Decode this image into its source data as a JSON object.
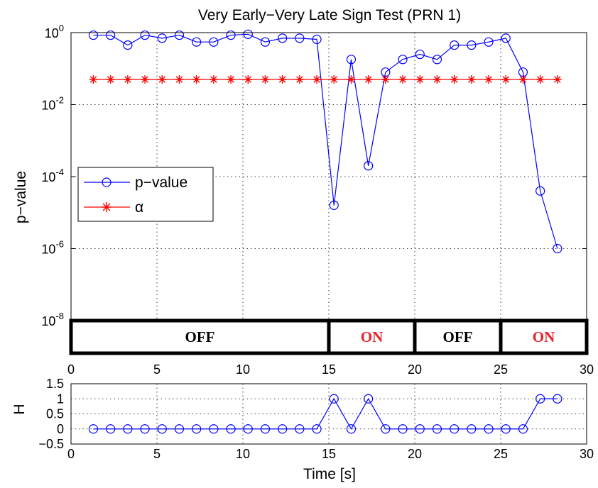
{
  "chart_data": [
    {
      "type": "line",
      "title": "Very Early−Very Late Sign Test (PRN 1)",
      "ylabel": "p−value",
      "xlabel": "",
      "xlim": [
        0,
        30
      ],
      "ylim_exponent": [
        -8,
        0
      ],
      "yscale": "log",
      "grid": true,
      "legend_position": "middle-left",
      "x_ticks": [
        "0",
        "5",
        "10",
        "15",
        "20",
        "25",
        "30"
      ],
      "y_ticks": [
        {
          "base": "10",
          "exp": "0"
        },
        {
          "base": "10",
          "exp": "-2"
        },
        {
          "base": "10",
          "exp": "-4"
        },
        {
          "base": "10",
          "exp": "-6"
        },
        {
          "base": "10",
          "exp": "-8"
        }
      ],
      "series": [
        {
          "name": "p−value",
          "color": "#0000ff",
          "marker": "circle",
          "x": [
            1.3,
            2.3,
            3.3,
            4.3,
            5.3,
            6.3,
            7.3,
            8.3,
            9.3,
            10.3,
            11.3,
            12.3,
            13.3,
            14.3,
            15.3,
            16.3,
            17.3,
            18.3,
            19.3,
            20.3,
            21.3,
            22.3,
            23.3,
            24.3,
            25.3,
            26.3,
            27.3,
            28.3
          ],
          "y": [
            0.85,
            0.85,
            0.45,
            0.85,
            0.7,
            0.85,
            0.55,
            0.55,
            0.85,
            0.9,
            0.55,
            0.7,
            0.7,
            0.65,
            1.6e-05,
            0.18,
            0.0002,
            0.08,
            0.18,
            0.25,
            0.18,
            0.45,
            0.45,
            0.55,
            0.7,
            0.08,
            4e-05,
            1e-06
          ]
        },
        {
          "name": "α",
          "color": "#ff0000",
          "marker": "asterisk",
          "x": [
            1.3,
            2.3,
            3.3,
            4.3,
            5.3,
            6.3,
            7.3,
            8.3,
            9.3,
            10.3,
            11.3,
            12.3,
            13.3,
            14.3,
            15.3,
            16.3,
            17.3,
            18.3,
            19.3,
            20.3,
            21.3,
            22.3,
            23.3,
            24.3,
            25.3,
            26.3,
            27.3,
            28.3
          ],
          "y": [
            0.05,
            0.05,
            0.05,
            0.05,
            0.05,
            0.05,
            0.05,
            0.05,
            0.05,
            0.05,
            0.05,
            0.05,
            0.05,
            0.05,
            0.05,
            0.05,
            0.05,
            0.05,
            0.05,
            0.05,
            0.05,
            0.05,
            0.05,
            0.05,
            0.05,
            0.05,
            0.05,
            0.05
          ]
        }
      ],
      "state_bands": [
        {
          "label": "OFF",
          "start": 0,
          "end": 15,
          "color": "#000000"
        },
        {
          "label": "ON",
          "start": 15,
          "end": 20,
          "color": "#e8202a"
        },
        {
          "label": "OFF",
          "start": 20,
          "end": 25,
          "color": "#000000"
        },
        {
          "label": "ON",
          "start": 25,
          "end": 30,
          "color": "#e8202a"
        }
      ]
    },
    {
      "type": "line",
      "title": "",
      "xlabel": "Time [s]",
      "ylabel": "H",
      "xlim": [
        0,
        30
      ],
      "ylim": [
        -0.5,
        1.5
      ],
      "grid": true,
      "x_ticks": [
        "0",
        "5",
        "10",
        "15",
        "20",
        "25",
        "30"
      ],
      "y_ticks": [
        "1.5",
        "1",
        "0.5",
        "0",
        "−0.5"
      ],
      "y_tick_values": [
        1.5,
        1,
        0.5,
        0,
        -0.5
      ],
      "series": [
        {
          "color": "#0000ff",
          "marker": "circle",
          "x": [
            1.3,
            2.3,
            3.3,
            4.3,
            5.3,
            6.3,
            7.3,
            8.3,
            9.3,
            10.3,
            11.3,
            12.3,
            13.3,
            14.3,
            15.3,
            16.3,
            17.3,
            18.3,
            19.3,
            20.3,
            21.3,
            22.3,
            23.3,
            24.3,
            25.3,
            26.3,
            27.3,
            28.3
          ],
          "y": [
            0,
            0,
            0,
            0,
            0,
            0,
            0,
            0,
            0,
            0,
            0,
            0,
            0,
            0,
            1,
            0,
            1,
            0,
            0,
            0,
            0,
            0,
            0,
            0,
            0,
            0,
            1,
            1
          ]
        }
      ]
    }
  ]
}
